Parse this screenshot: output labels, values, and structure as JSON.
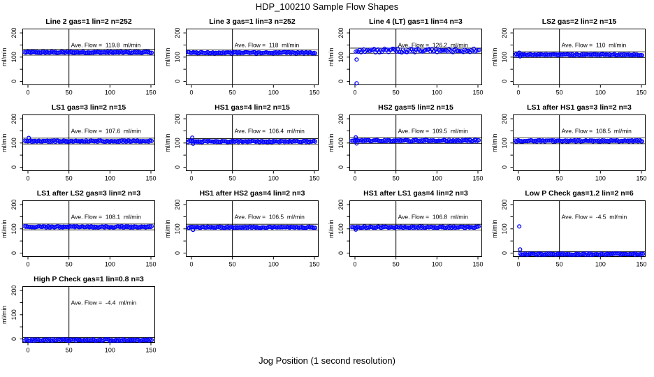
{
  "header": {
    "title": "HDP_100210  Sample Flow Shapes"
  },
  "footer": {
    "xaxis_label": "Jog Position (1 second resolution)"
  },
  "chart_data": {
    "type": "scatter",
    "title": "HDP_100210  Sample Flow Shapes",
    "xlabel": "Jog Position (1 second resolution)",
    "ylabel": "ml/min",
    "point_color": "#0000FF",
    "line_color": "#000000",
    "grid": false,
    "x_ticks": [
      0,
      50,
      100,
      150
    ],
    "y_ticks": [
      0,
      50,
      100,
      150,
      200
    ],
    "y_tick_labels": [
      0,
      100,
      200
    ],
    "xlim": [
      -6,
      157
    ],
    "ylim": [
      -14,
      216
    ],
    "vline_x": 50,
    "plots": [
      {
        "title": "Line 2 gas=1 lin=2 n=252",
        "ave_flow": 119.8,
        "ave_flow_label": "Ave. Flow =  119.8  ml/min",
        "band": {
          "y": 119.8,
          "x_start": -4,
          "x_end": 152,
          "spread": 3,
          "step": 1.25
        },
        "ref_lines": [
          132,
          108
        ],
        "outliers": []
      },
      {
        "title": "Line 3 gas=1 lin=3 n=252",
        "ave_flow": 118,
        "ave_flow_label": "Ave. Flow =  118  ml/min",
        "band": {
          "y": 118,
          "x_start": -4,
          "x_end": 152,
          "spread": 3,
          "step": 1.25
        },
        "ref_lines": [
          130,
          106
        ],
        "outliers": []
      },
      {
        "title": "Line 4 (LT) gas=1 lin=4 n=3",
        "ave_flow": 126.2,
        "ave_flow_label": "Ave. Flow =  126.2  ml/min",
        "band": {
          "y": 127,
          "x_start": 1,
          "x_end": 152,
          "spread": 8,
          "step": 1.6
        },
        "ref_lines": [
          137,
          116
        ],
        "outliers": [
          [
            2,
            90
          ],
          [
            2,
            -8
          ]
        ]
      },
      {
        "title": "LS2 gas=2 lin=2 n=15",
        "ave_flow": 110,
        "ave_flow_label": "Ave. Flow =  110  ml/min",
        "band": {
          "y": 110,
          "x_start": -4,
          "x_end": 152,
          "spread": 3,
          "step": 1.25
        },
        "ref_lines": [
          122,
          98
        ],
        "outliers": [
          [
            1,
            118
          ],
          [
            2,
            103
          ]
        ]
      },
      {
        "title": "LS1 gas=3 lin=2 n=15",
        "ave_flow": 107.6,
        "ave_flow_label": "Ave. Flow =  107.6  ml/min",
        "band": {
          "y": 107.6,
          "x_start": -4,
          "x_end": 152,
          "spread": 3,
          "step": 1.25
        },
        "ref_lines": [
          120,
          96
        ],
        "outliers": [
          [
            1,
            121
          ]
        ]
      },
      {
        "title": "HS1 gas=4 lin=2 n=15",
        "ave_flow": 106.4,
        "ave_flow_label": "Ave. Flow =  106.4  ml/min",
        "band": {
          "y": 106.4,
          "x_start": -4,
          "x_end": 152,
          "spread": 3,
          "step": 1.25
        },
        "ref_lines": [
          118,
          94
        ],
        "outliers": [
          [
            1,
            122
          ],
          [
            2,
            97
          ]
        ]
      },
      {
        "title": "HS2 gas=5 lin=2 n=15",
        "ave_flow": 109.5,
        "ave_flow_label": "Ave. Flow =  109.5  ml/min",
        "band": {
          "y": 109.5,
          "x_start": -4,
          "x_end": 152,
          "spread": 3.5,
          "step": 1.25
        },
        "ref_lines": [
          122,
          98
        ],
        "outliers": [
          [
            1,
            123
          ],
          [
            2,
            98
          ]
        ]
      },
      {
        "title": "LS1 after HS1 gas=3 lin=2 n=3",
        "ave_flow": 108.5,
        "ave_flow_label": "Ave. Flow =  108.5  ml/min",
        "band": {
          "y": 108.5,
          "x_start": -4,
          "x_end": 152,
          "spread": 3,
          "step": 1.25
        },
        "ref_lines": [
          121,
          97
        ],
        "outliers": []
      },
      {
        "title": "LS1 after LS2 gas=3 lin=2 n=3",
        "ave_flow": 108.1,
        "ave_flow_label": "Ave. Flow =  108.1  ml/min",
        "band": {
          "y": 108.1,
          "x_start": -4,
          "x_end": 152,
          "spread": 3,
          "step": 1.25
        },
        "ref_lines": [
          120,
          96
        ],
        "outliers": []
      },
      {
        "title": "HS1 after HS2 gas=4 lin=2 n=3",
        "ave_flow": 106.5,
        "ave_flow_label": "Ave. Flow =  106.5  ml/min",
        "band": {
          "y": 106.5,
          "x_start": -4,
          "x_end": 152,
          "spread": 3,
          "step": 1.25
        },
        "ref_lines": [
          119,
          95
        ],
        "outliers": [
          [
            2,
            96
          ]
        ]
      },
      {
        "title": "HS1 after LS1 gas=4 lin=2 n=3",
        "ave_flow": 106.8,
        "ave_flow_label": "Ave. Flow =  106.8  ml/min",
        "band": {
          "y": 106.8,
          "x_start": -4,
          "x_end": 152,
          "spread": 3,
          "step": 1.25
        },
        "ref_lines": [
          119,
          95
        ],
        "outliers": [
          [
            1,
            97
          ]
        ]
      },
      {
        "title": "Low P Check gas=1.2 lin=2 n=6",
        "ave_flow": -4.5,
        "ave_flow_label": "Ave. Flow =  -4.5  ml/min",
        "band": {
          "y": -4.5,
          "x_start": 2,
          "x_end": 152,
          "spread": 3,
          "step": 1.25
        },
        "ref_lines": [
          6,
          -15
        ],
        "outliers": [
          [
            1,
            110
          ],
          [
            2,
            15
          ]
        ]
      },
      {
        "title": "High P Check gas=1 lin=0.8 n=3",
        "ave_flow": -4.4,
        "ave_flow_label": "Ave. Flow =  -4.4  ml/min",
        "band": {
          "y": -4.4,
          "x_start": -4,
          "x_end": 152,
          "spread": 3,
          "step": 1.25
        },
        "ref_lines": [
          6,
          -15
        ],
        "outliers": []
      }
    ]
  }
}
